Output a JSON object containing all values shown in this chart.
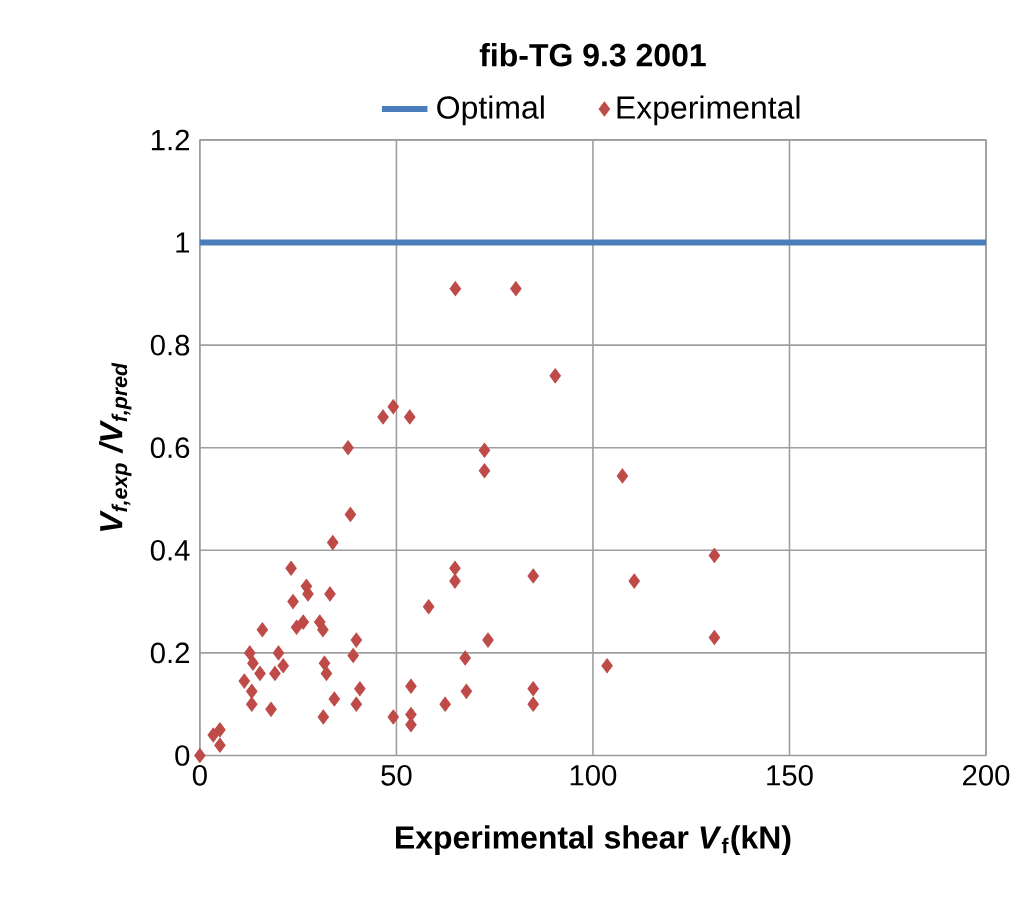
{
  "chart_data": {
    "type": "scatter",
    "title": "fib-TG 9.3 2001",
    "xlabel": "Experimental shear *V*$_{f}$(kN)",
    "ylabel": "V$_{f,exp}$ /V$_{f,pred}$",
    "xlim": [
      0,
      200
    ],
    "xticks": [
      0,
      50,
      100,
      150,
      200
    ],
    "ylim": [
      0,
      1.2
    ],
    "yticks": [
      0,
      0.2,
      0.4,
      0.6,
      0.8,
      1,
      1.2
    ],
    "grid": true,
    "legend": "top",
    "series": [
      {
        "name": "Optimal",
        "type": "line",
        "color": "#4a7ebb",
        "marker": "none",
        "x": [
          0,
          200
        ],
        "values": [
          1,
          1
        ]
      },
      {
        "name": "Experimental",
        "color": "#be4b48",
        "marker": "diamond",
        "x": [
          0,
          3.4,
          5.1,
          5.1,
          11.3,
          12.7,
          13.5,
          13.2,
          13.2,
          15.3,
          15.9,
          18.1,
          19.1,
          20,
          21.2,
          23.2,
          23.7,
          24.6,
          27.1,
          27.5,
          26.3,
          30.5,
          31.3,
          31.7,
          32.2,
          33.1,
          31.4,
          34.2,
          33.8,
          38.3,
          37.7,
          39.8,
          39,
          40.7,
          39.8,
          46.6,
          49.2,
          53.4,
          49.2,
          53.7,
          53.7,
          53.7,
          58.2,
          62.4,
          64.9,
          64.9,
          67.5,
          67.8,
          72.4,
          72.4,
          73.3,
          84.8,
          84.8,
          84.8,
          90.4,
          107.5,
          130.9,
          110.5,
          130.9,
          103.6,
          65,
          80.4
        ],
        "values": [
          0,
          0.04,
          0.05,
          0.02,
          0.145,
          0.2,
          0.18,
          0.125,
          0.1,
          0.16,
          0.245,
          0.09,
          0.16,
          0.2,
          0.175,
          0.365,
          0.3,
          0.25,
          0.33,
          0.315,
          0.26,
          0.26,
          0.245,
          0.18,
          0.16,
          0.315,
          0.075,
          0.11,
          0.415,
          0.47,
          0.6,
          0.225,
          0.195,
          0.13,
          0.1,
          0.66,
          0.68,
          0.66,
          0.075,
          0.135,
          0.08,
          0.06,
          0.29,
          0.1,
          0.365,
          0.34,
          0.19,
          0.125,
          0.595,
          0.555,
          0.225,
          0.35,
          0.13,
          0.1,
          0.74,
          0.545,
          0.39,
          0.34,
          0.23,
          0.175,
          0.91,
          0.91
        ]
      }
    ]
  }
}
